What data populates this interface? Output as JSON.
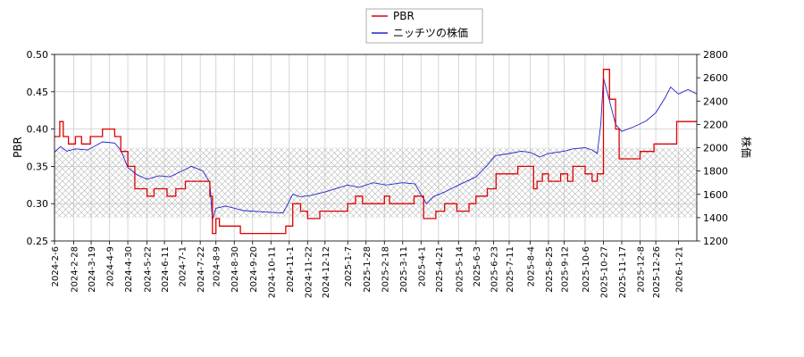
{
  "chart_data": {
    "type": "line",
    "title": "",
    "legend": {
      "placement": "top-center",
      "entries": [
        {
          "name": "PBR",
          "color": "#dd0000"
        },
        {
          "name": "ニッチツの株価",
          "color": "#2222cc"
        }
      ]
    },
    "grid": true,
    "band": {
      "axis": "right",
      "range": [
        1400,
        2000
      ],
      "pattern": "crosshatch"
    },
    "y_left": {
      "label": "PBR",
      "ylim": [
        0.25,
        0.5
      ],
      "ticks": [
        "0.25",
        "0.30",
        "0.35",
        "0.40",
        "0.45",
        "0.50"
      ]
    },
    "y_right": {
      "label": "株価",
      "ylim": [
        1200,
        2800
      ],
      "ticks": [
        "1200",
        "1400",
        "1600",
        "1800",
        "2000",
        "2200",
        "2400",
        "2600",
        "2800"
      ]
    },
    "x": {
      "xlim": [
        "2024-02-06",
        "2026-02-11"
      ],
      "ticks": [
        "2024-2-6",
        "2024-2-28",
        "2024-3-19",
        "2024-4-9",
        "2024-4-30",
        "2024-5-22",
        "2024-6-11",
        "2024-7-1",
        "2024-7-22",
        "2024-8-9",
        "2024-8-30",
        "2024-9-20",
        "2024-10-11",
        "2024-11-1",
        "2024-11-22",
        "2024-12-12",
        "2025-1-7",
        "2025-1-28",
        "2025-2-18",
        "2025-3-11",
        "2025-4-1",
        "2025-4-21",
        "2025-5-14",
        "2025-6-3",
        "2025-6-23",
        "2025-7-11",
        "2025-8-4",
        "2025-8-25",
        "2025-9-12",
        "2025-10-6",
        "2025-10-27",
        "2025-11-17",
        "2025-12-8",
        "2025-12-26",
        "2026-1-21"
      ]
    },
    "series": [
      {
        "name": "PBR",
        "axis": "left",
        "step": true,
        "points": [
          [
            "2024-02-06",
            0.39
          ],
          [
            "2024-02-12",
            0.41
          ],
          [
            "2024-02-16",
            0.39
          ],
          [
            "2024-02-22",
            0.38
          ],
          [
            "2024-03-01",
            0.39
          ],
          [
            "2024-03-08",
            0.38
          ],
          [
            "2024-03-18",
            0.39
          ],
          [
            "2024-04-01",
            0.4
          ],
          [
            "2024-04-15",
            0.39
          ],
          [
            "2024-04-22",
            0.37
          ],
          [
            "2024-04-30",
            0.35
          ],
          [
            "2024-05-08",
            0.32
          ],
          [
            "2024-05-22",
            0.31
          ],
          [
            "2024-05-30",
            0.32
          ],
          [
            "2024-06-14",
            0.31
          ],
          [
            "2024-06-24",
            0.32
          ],
          [
            "2024-07-05",
            0.33
          ],
          [
            "2024-08-02",
            0.31
          ],
          [
            "2024-08-05",
            0.26
          ],
          [
            "2024-08-09",
            0.28
          ],
          [
            "2024-08-13",
            0.27
          ],
          [
            "2024-09-06",
            0.26
          ],
          [
            "2024-10-28",
            0.27
          ],
          [
            "2024-11-05",
            0.3
          ],
          [
            "2024-11-14",
            0.29
          ],
          [
            "2024-11-22",
            0.28
          ],
          [
            "2024-12-06",
            0.29
          ],
          [
            "2025-01-07",
            0.3
          ],
          [
            "2025-01-16",
            0.31
          ],
          [
            "2025-01-24",
            0.3
          ],
          [
            "2025-02-18",
            0.31
          ],
          [
            "2025-02-24",
            0.3
          ],
          [
            "2025-03-24",
            0.31
          ],
          [
            "2025-04-04",
            0.28
          ],
          [
            "2025-04-18",
            0.29
          ],
          [
            "2025-04-28",
            0.3
          ],
          [
            "2025-05-12",
            0.29
          ],
          [
            "2025-05-26",
            0.3
          ],
          [
            "2025-06-03",
            0.31
          ],
          [
            "2025-06-16",
            0.32
          ],
          [
            "2025-06-26",
            0.34
          ],
          [
            "2025-07-21",
            0.35
          ],
          [
            "2025-08-08",
            0.32
          ],
          [
            "2025-08-12",
            0.33
          ],
          [
            "2025-08-18",
            0.34
          ],
          [
            "2025-08-25",
            0.33
          ],
          [
            "2025-09-08",
            0.34
          ],
          [
            "2025-09-16",
            0.33
          ],
          [
            "2025-09-22",
            0.35
          ],
          [
            "2025-10-06",
            0.34
          ],
          [
            "2025-10-14",
            0.33
          ],
          [
            "2025-10-20",
            0.34
          ],
          [
            "2025-10-27",
            0.48
          ],
          [
            "2025-11-03",
            0.44
          ],
          [
            "2025-11-10",
            0.4
          ],
          [
            "2025-11-14",
            0.36
          ],
          [
            "2025-12-08",
            0.37
          ],
          [
            "2025-12-24",
            0.38
          ],
          [
            "2026-01-19",
            0.41
          ],
          [
            "2026-02-11",
            0.41
          ]
        ]
      },
      {
        "name": "ニッチツの株価",
        "axis": "right",
        "step": false,
        "points": [
          [
            "2024-02-06",
            1960
          ],
          [
            "2024-02-13",
            2010
          ],
          [
            "2024-02-20",
            1970
          ],
          [
            "2024-03-01",
            1990
          ],
          [
            "2024-03-15",
            1980
          ],
          [
            "2024-04-01",
            2050
          ],
          [
            "2024-04-15",
            2040
          ],
          [
            "2024-04-22",
            1980
          ],
          [
            "2024-04-30",
            1830
          ],
          [
            "2024-05-10",
            1770
          ],
          [
            "2024-05-22",
            1730
          ],
          [
            "2024-06-05",
            1760
          ],
          [
            "2024-06-17",
            1750
          ],
          [
            "2024-07-01",
            1800
          ],
          [
            "2024-07-12",
            1840
          ],
          [
            "2024-07-25",
            1800
          ],
          [
            "2024-08-02",
            1700
          ],
          [
            "2024-08-05",
            1380
          ],
          [
            "2024-08-09",
            1480
          ],
          [
            "2024-08-20",
            1500
          ],
          [
            "2024-09-10",
            1460
          ],
          [
            "2024-10-01",
            1450
          ],
          [
            "2024-10-25",
            1440
          ],
          [
            "2024-11-05",
            1600
          ],
          [
            "2024-11-14",
            1580
          ],
          [
            "2024-11-25",
            1590
          ],
          [
            "2024-12-12",
            1620
          ],
          [
            "2025-01-07",
            1680
          ],
          [
            "2025-01-20",
            1660
          ],
          [
            "2025-02-05",
            1700
          ],
          [
            "2025-02-20",
            1680
          ],
          [
            "2025-03-11",
            1700
          ],
          [
            "2025-03-25",
            1690
          ],
          [
            "2025-04-07",
            1520
          ],
          [
            "2025-04-15",
            1580
          ],
          [
            "2025-04-28",
            1620
          ],
          [
            "2025-05-14",
            1680
          ],
          [
            "2025-06-03",
            1750
          ],
          [
            "2025-06-16",
            1850
          ],
          [
            "2025-06-25",
            1930
          ],
          [
            "2025-07-11",
            1950
          ],
          [
            "2025-07-25",
            1970
          ],
          [
            "2025-08-04",
            1960
          ],
          [
            "2025-08-15",
            1920
          ],
          [
            "2025-08-25",
            1950
          ],
          [
            "2025-09-12",
            1970
          ],
          [
            "2025-09-22",
            1990
          ],
          [
            "2025-10-06",
            2000
          ],
          [
            "2025-10-14",
            1980
          ],
          [
            "2025-10-20",
            1950
          ],
          [
            "2025-10-24",
            2200
          ],
          [
            "2025-10-27",
            2600
          ],
          [
            "2025-11-03",
            2400
          ],
          [
            "2025-11-10",
            2200
          ],
          [
            "2025-11-17",
            2140
          ],
          [
            "2025-12-01",
            2180
          ],
          [
            "2025-12-15",
            2230
          ],
          [
            "2025-12-26",
            2300
          ],
          [
            "2026-01-05",
            2420
          ],
          [
            "2026-01-12",
            2520
          ],
          [
            "2026-01-21",
            2460
          ],
          [
            "2026-02-01",
            2500
          ],
          [
            "2026-02-11",
            2460
          ]
        ]
      }
    ]
  }
}
